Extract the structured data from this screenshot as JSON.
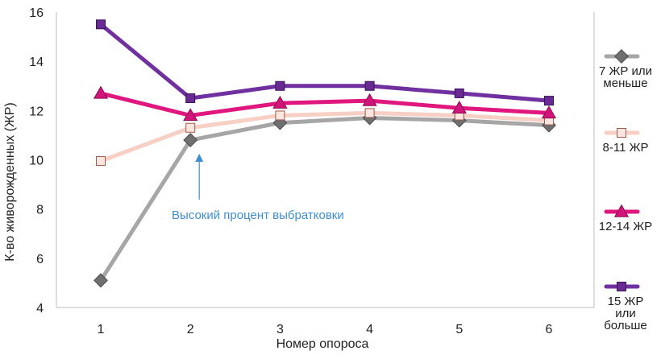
{
  "chart_data": {
    "type": "line",
    "title": "",
    "xlabel": "Номер опороса",
    "ylabel": "К-во живорожденных (ЖР)",
    "categories": [
      "1",
      "2",
      "3",
      "4",
      "5",
      "6"
    ],
    "ylim": [
      4,
      16
    ],
    "yticks": [
      4,
      6,
      8,
      10,
      12,
      14,
      16
    ],
    "grid": false,
    "legend_position": "right",
    "series": [
      {
        "name": "7 ЖР или меньше",
        "label_lines": [
          "7 ЖР или",
          "меньше"
        ],
        "values": [
          5.1,
          10.8,
          11.5,
          11.7,
          11.6,
          11.4
        ],
        "color": "#a6a6a6",
        "marker": "diamond",
        "marker_fill": "#6f6f6f",
        "marker_stroke": "#4d4d4d"
      },
      {
        "name": "8-11 ЖР",
        "label_lines": [
          "8-11 ЖР"
        ],
        "values": [
          9.95,
          11.3,
          11.8,
          11.9,
          11.8,
          11.6
        ],
        "color": "#f8cfc4",
        "marker": "square",
        "marker_fill": "#fde6df",
        "marker_stroke": "#a05a4a"
      },
      {
        "name": "12-14 ЖР",
        "label_lines": [
          "12-14 ЖР"
        ],
        "values": [
          12.7,
          11.8,
          12.3,
          12.4,
          12.1,
          11.9
        ],
        "color": "#e0177e",
        "marker": "triangle",
        "marker_fill": "#d0147a",
        "marker_stroke": "#8a0c50"
      },
      {
        "name": "15 ЖР или больше",
        "label_lines": [
          "15 ЖР",
          "или",
          "больше"
        ],
        "values": [
          15.5,
          12.5,
          13.0,
          13.0,
          12.7,
          12.4
        ],
        "color": "#7030a0",
        "marker": "square",
        "marker_fill": "#6a2a93",
        "marker_stroke": "#3a1058"
      }
    ],
    "annotations": [
      {
        "text": "Высокий процент выбратковки",
        "x": "2",
        "y": 10.8,
        "color": "#3f8fcf"
      }
    ]
  }
}
